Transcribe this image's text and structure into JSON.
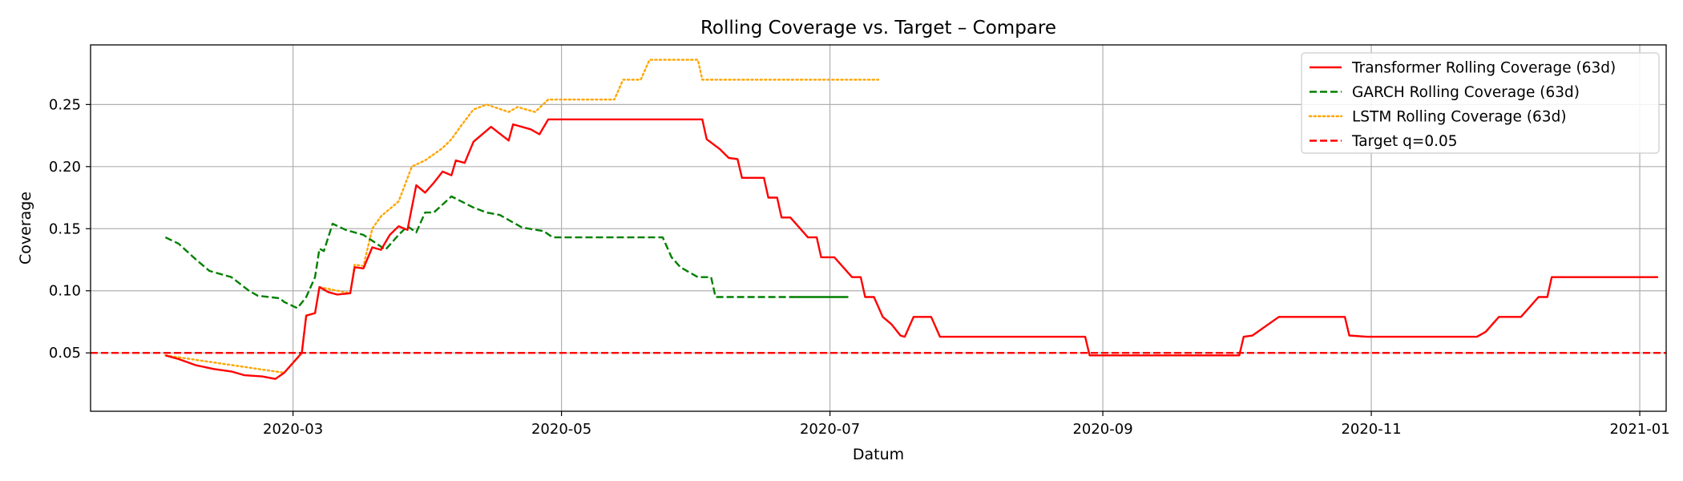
{
  "chart_data": {
    "type": "line",
    "title": "Rolling Coverage vs. Target – Compare",
    "xlabel": "Datum",
    "ylabel": "Coverage",
    "xlim": [
      "2020-01-15",
      "2021-01-07"
    ],
    "ylim": [
      0.003,
      0.298
    ],
    "grid": true,
    "legend_position": "top-right",
    "x_ticks": [
      {
        "date": "2020-03-01",
        "label": "2020-03"
      },
      {
        "date": "2020-05-01",
        "label": "2020-05"
      },
      {
        "date": "2020-07-01",
        "label": "2020-07"
      },
      {
        "date": "2020-09-01",
        "label": "2020-09"
      },
      {
        "date": "2020-11-01",
        "label": "2020-11"
      },
      {
        "date": "2021-01-01",
        "label": "2021-01"
      }
    ],
    "y_ticks": [
      {
        "value": 0.05,
        "label": "0.05"
      },
      {
        "value": 0.1,
        "label": "0.10"
      },
      {
        "value": 0.15,
        "label": "0.15"
      },
      {
        "value": 0.2,
        "label": "0.20"
      },
      {
        "value": 0.25,
        "label": "0.25"
      }
    ],
    "target": {
      "name": "Target q=0.05",
      "value": 0.05,
      "color": "#ff0000",
      "style": "dashed"
    },
    "series": [
      {
        "name": "Transformer Rolling Coverage (63d)",
        "color": "#ff0000",
        "style": "solid",
        "points": [
          [
            "2020-02-01",
            0.048
          ],
          [
            "2020-02-04",
            0.045
          ],
          [
            "2020-02-08",
            0.04
          ],
          [
            "2020-02-12",
            0.037
          ],
          [
            "2020-02-16",
            0.035
          ],
          [
            "2020-02-19",
            0.032
          ],
          [
            "2020-02-23",
            0.031
          ],
          [
            "2020-02-26",
            0.029
          ],
          [
            "2020-02-28",
            0.034
          ],
          [
            "2020-03-03",
            0.05
          ],
          [
            "2020-03-04",
            0.08
          ],
          [
            "2020-03-06",
            0.082
          ],
          [
            "2020-03-07",
            0.103
          ],
          [
            "2020-03-09",
            0.099
          ],
          [
            "2020-03-11",
            0.097
          ],
          [
            "2020-03-14",
            0.098
          ],
          [
            "2020-03-15",
            0.119
          ],
          [
            "2020-03-17",
            0.118
          ],
          [
            "2020-03-19",
            0.135
          ],
          [
            "2020-03-21",
            0.133
          ],
          [
            "2020-03-23",
            0.145
          ],
          [
            "2020-03-25",
            0.152
          ],
          [
            "2020-03-27",
            0.149
          ],
          [
            "2020-03-29",
            0.185
          ],
          [
            "2020-03-31",
            0.179
          ],
          [
            "2020-04-02",
            0.187
          ],
          [
            "2020-04-04",
            0.196
          ],
          [
            "2020-04-06",
            0.193
          ],
          [
            "2020-04-07",
            0.205
          ],
          [
            "2020-04-09",
            0.203
          ],
          [
            "2020-04-11",
            0.22
          ],
          [
            "2020-04-15",
            0.232
          ],
          [
            "2020-04-19",
            0.221
          ],
          [
            "2020-04-20",
            0.234
          ],
          [
            "2020-04-24",
            0.23
          ],
          [
            "2020-04-26",
            0.226
          ],
          [
            "2020-04-28",
            0.238
          ],
          [
            "2020-05-20",
            0.238
          ],
          [
            "2020-06-02",
            0.238
          ],
          [
            "2020-06-03",
            0.222
          ],
          [
            "2020-06-06",
            0.214
          ],
          [
            "2020-06-08",
            0.207
          ],
          [
            "2020-06-10",
            0.206
          ],
          [
            "2020-06-11",
            0.191
          ],
          [
            "2020-06-16",
            0.191
          ],
          [
            "2020-06-17",
            0.175
          ],
          [
            "2020-06-19",
            0.175
          ],
          [
            "2020-06-20",
            0.159
          ],
          [
            "2020-06-22",
            0.159
          ],
          [
            "2020-06-24",
            0.151
          ],
          [
            "2020-06-26",
            0.143
          ],
          [
            "2020-06-28",
            0.143
          ],
          [
            "2020-06-29",
            0.127
          ],
          [
            "2020-07-02",
            0.127
          ],
          [
            "2020-07-04",
            0.119
          ],
          [
            "2020-07-06",
            0.111
          ],
          [
            "2020-07-08",
            0.111
          ],
          [
            "2020-07-09",
            0.095
          ],
          [
            "2020-07-11",
            0.095
          ],
          [
            "2020-07-13",
            0.079
          ],
          [
            "2020-07-15",
            0.073
          ],
          [
            "2020-07-17",
            0.064
          ],
          [
            "2020-07-18",
            0.063
          ],
          [
            "2020-07-20",
            0.079
          ],
          [
            "2020-07-24",
            0.079
          ],
          [
            "2020-07-26",
            0.063
          ],
          [
            "2020-07-31",
            0.063
          ],
          [
            "2020-08-15",
            0.063
          ],
          [
            "2020-08-28",
            0.063
          ],
          [
            "2020-08-29",
            0.048
          ],
          [
            "2020-09-30",
            0.048
          ],
          [
            "2020-10-02",
            0.048
          ],
          [
            "2020-10-03",
            0.063
          ],
          [
            "2020-10-05",
            0.064
          ],
          [
            "2020-10-11",
            0.079
          ],
          [
            "2020-10-26",
            0.079
          ],
          [
            "2020-10-27",
            0.064
          ],
          [
            "2020-10-31",
            0.063
          ],
          [
            "2020-11-25",
            0.063
          ],
          [
            "2020-11-27",
            0.067
          ],
          [
            "2020-11-30",
            0.079
          ],
          [
            "2020-12-05",
            0.079
          ],
          [
            "2020-12-07",
            0.087
          ],
          [
            "2020-12-09",
            0.095
          ],
          [
            "2020-12-11",
            0.095
          ],
          [
            "2020-12-12",
            0.111
          ],
          [
            "2021-01-05",
            0.111
          ],
          [
            "2020-12-31",
            0.111
          ],
          [
            "2020-12-31",
            0.111
          ]
        ]
      },
      {
        "name": "GARCH Rolling Coverage (63d)",
        "color": "#008000",
        "style": "dashed",
        "points": [
          [
            "2020-02-01",
            0.143
          ],
          [
            "2020-02-04",
            0.138
          ],
          [
            "2020-02-08",
            0.125
          ],
          [
            "2020-02-11",
            0.116
          ],
          [
            "2020-02-16",
            0.111
          ],
          [
            "2020-02-20",
            0.1
          ],
          [
            "2020-02-22",
            0.096
          ],
          [
            "2020-02-27",
            0.094
          ],
          [
            "2020-02-28",
            0.091
          ],
          [
            "2020-03-02",
            0.086
          ],
          [
            "2020-03-04",
            0.095
          ],
          [
            "2020-03-06",
            0.111
          ],
          [
            "2020-03-07",
            0.134
          ],
          [
            "2020-03-08",
            0.132
          ],
          [
            "2020-03-10",
            0.154
          ],
          [
            "2020-03-13",
            0.149
          ],
          [
            "2020-03-17",
            0.145
          ],
          [
            "2020-03-20",
            0.138
          ],
          [
            "2020-03-22",
            0.133
          ],
          [
            "2020-03-25",
            0.145
          ],
          [
            "2020-03-27",
            0.152
          ],
          [
            "2020-03-29",
            0.147
          ],
          [
            "2020-03-31",
            0.163
          ],
          [
            "2020-04-02",
            0.163
          ],
          [
            "2020-04-06",
            0.176
          ],
          [
            "2020-04-11",
            0.167
          ],
          [
            "2020-04-14",
            0.163
          ],
          [
            "2020-04-17",
            0.161
          ],
          [
            "2020-04-20",
            0.155
          ],
          [
            "2020-04-22",
            0.151
          ],
          [
            "2020-04-27",
            0.148
          ],
          [
            "2020-04-29",
            0.143
          ],
          [
            "2020-05-24",
            0.143
          ],
          [
            "2020-05-26",
            0.127
          ],
          [
            "2020-05-28",
            0.119
          ],
          [
            "2020-06-01",
            0.111
          ],
          [
            "2020-06-04",
            0.111
          ],
          [
            "2020-06-05",
            0.095
          ],
          [
            "2020-06-30",
            0.095
          ],
          [
            "2020-07-05",
            0.095
          ],
          [
            "2020-06-23",
            0.095
          ],
          [
            "2020-06-23",
            0.095
          ]
        ]
      },
      {
        "name": "LSTM Rolling Coverage (63d)",
        "color": "#ffa500",
        "style": "dotted",
        "points": [
          [
            "2020-02-01",
            0.048
          ],
          [
            "2020-02-28",
            0.034
          ],
          [
            "2020-03-03",
            0.05
          ],
          [
            "2020-03-04",
            0.08
          ],
          [
            "2020-03-06",
            0.082
          ],
          [
            "2020-03-07",
            0.103
          ],
          [
            "2020-03-14",
            0.098
          ],
          [
            "2020-03-15",
            0.121
          ],
          [
            "2020-03-17",
            0.12
          ],
          [
            "2020-03-19",
            0.15
          ],
          [
            "2020-03-21",
            0.16
          ],
          [
            "2020-03-25",
            0.172
          ],
          [
            "2020-03-28",
            0.2
          ],
          [
            "2020-03-31",
            0.205
          ],
          [
            "2020-04-04",
            0.215
          ],
          [
            "2020-04-06",
            0.222
          ],
          [
            "2020-04-08",
            0.232
          ],
          [
            "2020-04-11",
            0.246
          ],
          [
            "2020-04-14",
            0.25
          ],
          [
            "2020-04-19",
            0.244
          ],
          [
            "2020-04-21",
            0.248
          ],
          [
            "2020-04-25",
            0.244
          ],
          [
            "2020-04-28",
            0.254
          ],
          [
            "2020-05-13",
            0.254
          ],
          [
            "2020-05-15",
            0.27
          ],
          [
            "2020-05-19",
            0.27
          ],
          [
            "2020-05-21",
            0.286
          ],
          [
            "2020-06-01",
            0.286
          ],
          [
            "2020-06-02",
            0.27
          ],
          [
            "2020-06-30",
            0.27
          ],
          [
            "2020-07-12",
            0.27
          ]
        ]
      }
    ]
  }
}
